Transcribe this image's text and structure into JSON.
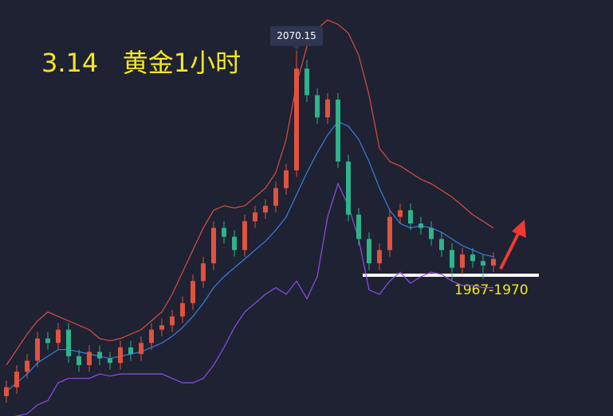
{
  "chart_data": {
    "type": "candlestick",
    "title": "3.14   黄金1小时",
    "annotation": "1967-1970",
    "ylim": [
      1905,
      2093
    ],
    "peak_index": 28,
    "candles": {
      "up_color": "#e0533f",
      "down_color": "#2fb38a",
      "open": [
        1914,
        1918,
        1925,
        1930,
        1940,
        1938,
        1944,
        1932,
        1928,
        1934,
        1931,
        1929,
        1936,
        1933,
        1938,
        1944,
        1946,
        1950,
        1956,
        1966,
        1974,
        1990,
        1986,
        1980,
        1993,
        1997,
        2000,
        2008,
        2016,
        2062,
        2050,
        2040,
        2048,
        2020,
        1996,
        1985,
        1974,
        1980,
        1995,
        1998,
        1992,
        1990,
        1985,
        1980,
        1972,
        1978,
        1975,
        1973
      ],
      "high": [
        1921,
        1928,
        1933,
        1943,
        1943,
        1947,
        1947,
        1935,
        1937,
        1937,
        1934,
        1939,
        1939,
        1941,
        1947,
        1949,
        1953,
        1959,
        1969,
        1977,
        1993,
        1993,
        1989,
        1996,
        2000,
        2003,
        2011,
        2019,
        2070.15,
        2066,
        2053,
        2051,
        2051,
        2023,
        1999,
        1988,
        1983,
        1998,
        2001,
        2001,
        1995,
        1993,
        1988,
        1983,
        1981,
        1981,
        1978,
        1979
      ],
      "low": [
        1911,
        1915,
        1922,
        1927,
        1935,
        1935,
        1929,
        1925,
        1925,
        1928,
        1926,
        1926,
        1930,
        1930,
        1935,
        1941,
        1943,
        1947,
        1953,
        1963,
        1971,
        1983,
        1977,
        1977,
        1990,
        1994,
        1997,
        2005,
        2013,
        2047,
        2037,
        2037,
        2017,
        1993,
        1982,
        1971,
        1971,
        1977,
        1992,
        1989,
        1987,
        1982,
        1977,
        1966,
        1969,
        1972,
        1967,
        1970
      ],
      "close": [
        1918,
        1925,
        1930,
        1940,
        1938,
        1944,
        1932,
        1928,
        1934,
        1931,
        1929,
        1936,
        1933,
        1938,
        1944,
        1946,
        1950,
        1956,
        1966,
        1974,
        1990,
        1986,
        1980,
        1993,
        1997,
        2000,
        2008,
        2016,
        2062,
        2050,
        2040,
        2048,
        2020,
        1996,
        1985,
        1974,
        1980,
        1995,
        1998,
        1992,
        1990,
        1985,
        1980,
        1972,
        1978,
        1975,
        1973,
        1976
      ]
    },
    "bands": [
      {
        "color": "#d8503e",
        "values": [
          1928,
          1935,
          1942,
          1948,
          1952,
          1950,
          1948,
          1946,
          1944,
          1940,
          1939,
          1940,
          1942,
          1944,
          1948,
          1952,
          1960,
          1970,
          1980,
          1990,
          1998,
          2000,
          1999,
          2000,
          2004,
          2008,
          2015,
          2030,
          2055,
          2072,
          2080,
          2084,
          2082,
          2078,
          2068,
          2050,
          2026,
          2020,
          2018,
          2015,
          2012,
          2010,
          2007,
          2004,
          2000,
          1996,
          1993,
          1990
        ]
      },
      {
        "color": "#3b7fe0",
        "values": [
          1916,
          1920,
          1924,
          1929,
          1932,
          1935,
          1935,
          1934,
          1933,
          1932,
          1931,
          1932,
          1933,
          1934,
          1936,
          1938,
          1941,
          1945,
          1950,
          1956,
          1963,
          1968,
          1972,
          1976,
          1980,
          1984,
          1989,
          1995,
          2005,
          2015,
          2024,
          2032,
          2038,
          2036,
          2030,
          2020,
          2008,
          1998,
          1992,
          1990,
          1991,
          1990,
          1988,
          1985,
          1982,
          1980,
          1978,
          1977
        ]
      },
      {
        "color": "#8f4fe8",
        "values": [
          1904,
          1905,
          1906,
          1910,
          1912,
          1920,
          1922,
          1922,
          1922,
          1924,
          1923,
          1924,
          1924,
          1924,
          1924,
          1924,
          1922,
          1920,
          1920,
          1922,
          1928,
          1936,
          1945,
          1952,
          1956,
          1960,
          1963,
          1960,
          1966,
          1958,
          1968,
          1995,
          2010,
          2000,
          1985,
          1962,
          1960,
          1966,
          1970,
          1965,
          1968,
          1970,
          1969,
          1966,
          1964,
          1964,
          1963,
          1963
        ]
      }
    ]
  }
}
